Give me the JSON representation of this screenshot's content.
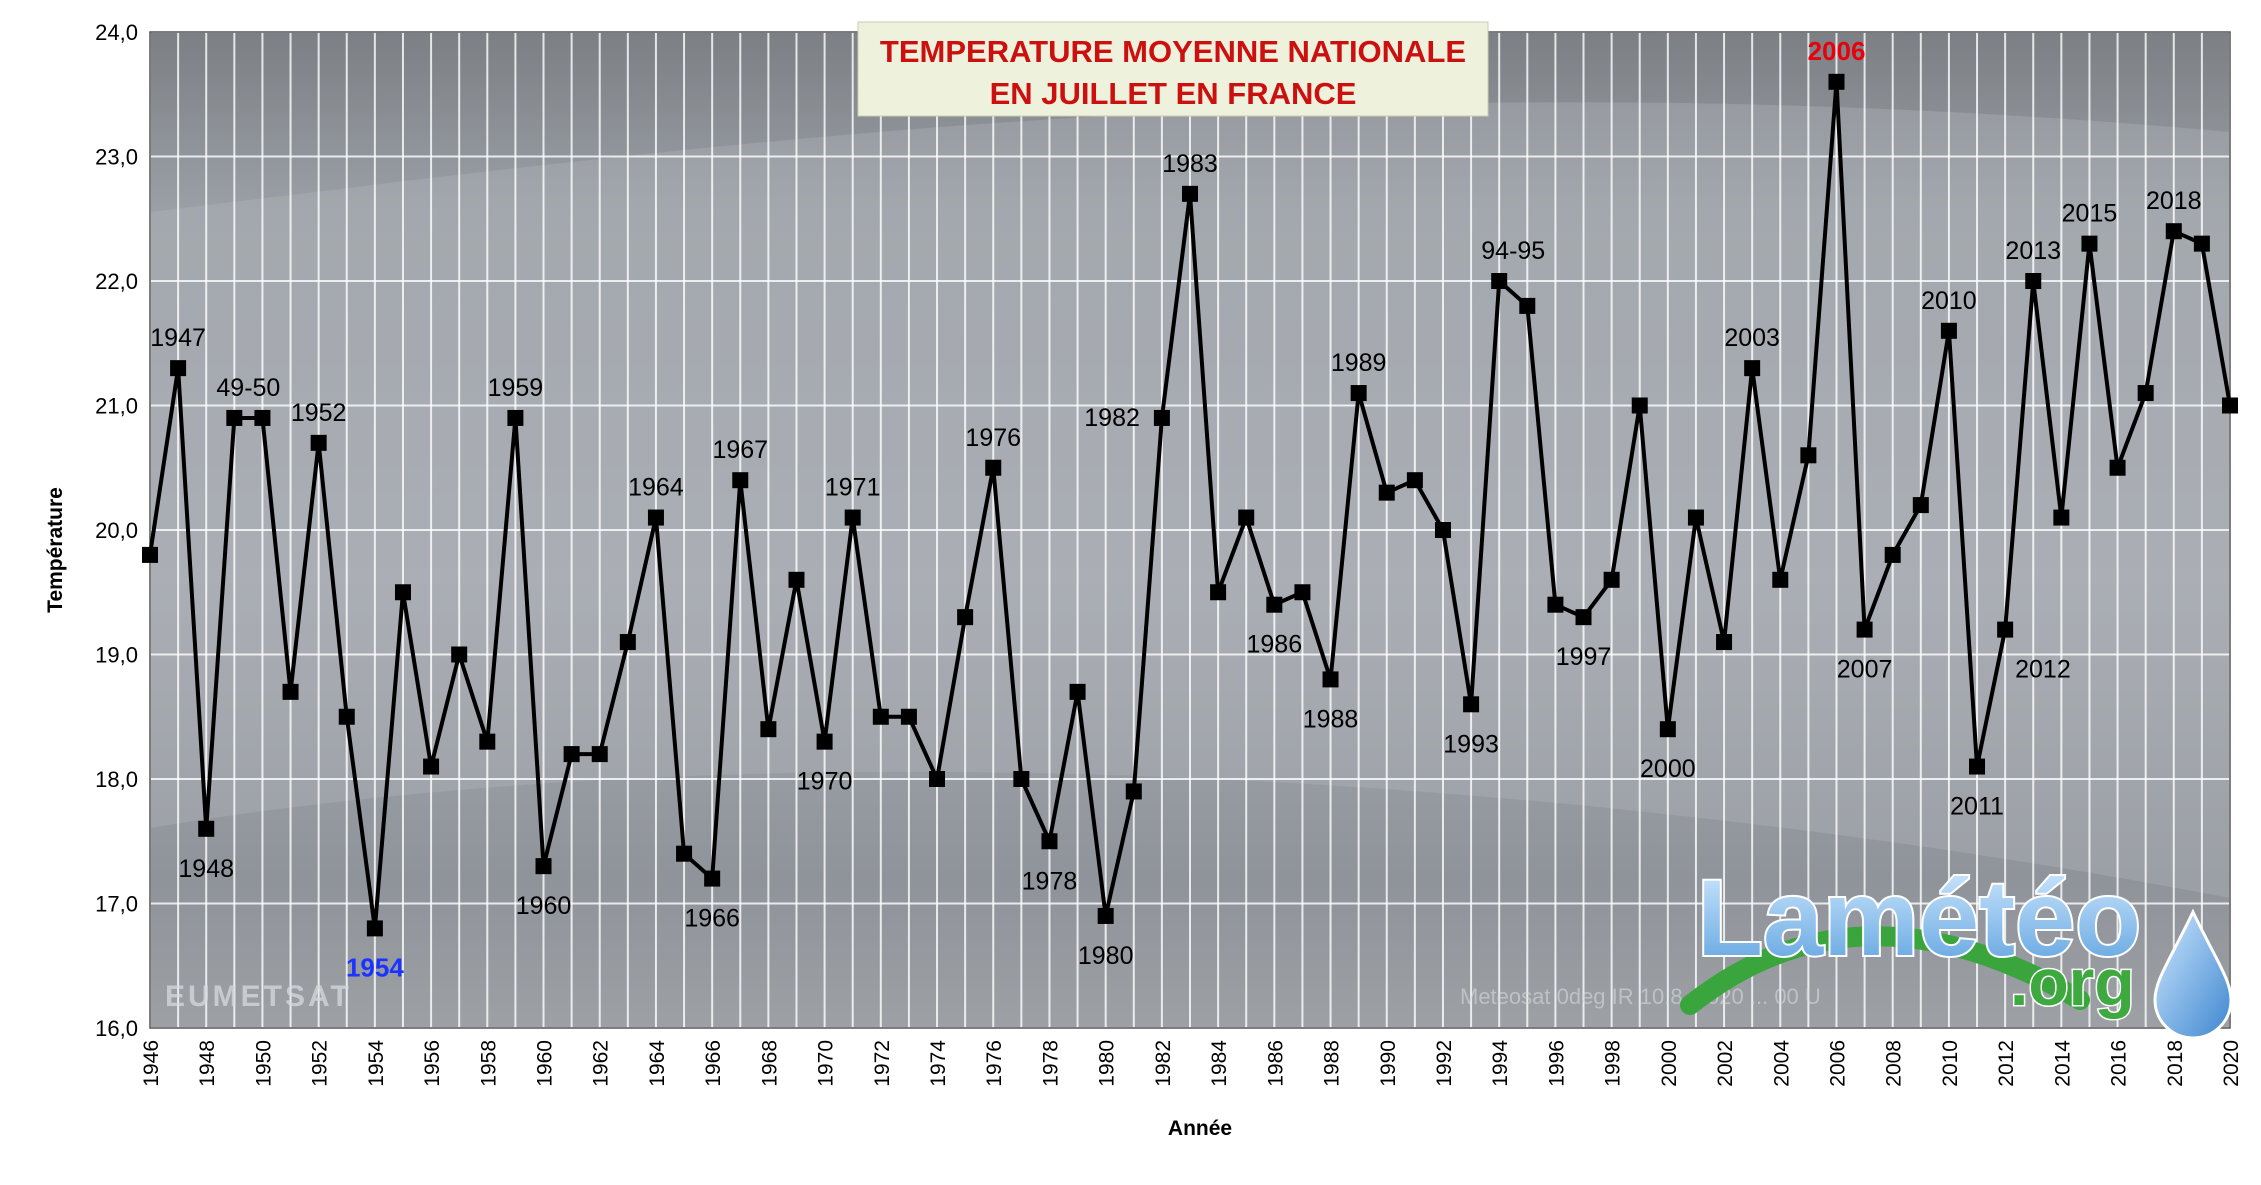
{
  "chart_data": {
    "type": "line",
    "title_line1": "TEMPERATURE MOYENNE NATIONALE",
    "title_line2": "EN JUILLET EN FRANCE",
    "xlabel": "Année",
    "ylabel": "Température",
    "xlim": [
      1946,
      2020
    ],
    "ylim": [
      16.0,
      24.0
    ],
    "y_ticks": [
      "16,0",
      "17,0",
      "18,0",
      "19,0",
      "20,0",
      "21,0",
      "22,0",
      "23,0",
      "24,0"
    ],
    "x_ticks": [
      "1946",
      "1948",
      "1950",
      "1952",
      "1954",
      "1956",
      "1958",
      "1960",
      "1962",
      "1964",
      "1966",
      "1968",
      "1970",
      "1972",
      "1974",
      "1976",
      "1978",
      "1980",
      "1982",
      "1984",
      "1986",
      "1988",
      "1990",
      "1992",
      "1994",
      "1996",
      "1998",
      "2000",
      "2002",
      "2004",
      "2006",
      "2008",
      "2010",
      "2012",
      "2014",
      "2016",
      "2018",
      "2020"
    ],
    "grid": true,
    "series": [
      {
        "color": "#000000",
        "x": [
          1946,
          1947,
          1948,
          1949,
          1950,
          1951,
          1952,
          1953,
          1954,
          1955,
          1956,
          1957,
          1958,
          1959,
          1960,
          1961,
          1962,
          1963,
          1964,
          1965,
          1966,
          1967,
          1968,
          1969,
          1970,
          1971,
          1972,
          1973,
          1974,
          1975,
          1976,
          1977,
          1978,
          1979,
          1980,
          1981,
          1982,
          1983,
          1984,
          1985,
          1986,
          1987,
          1988,
          1989,
          1990,
          1991,
          1992,
          1993,
          1994,
          1995,
          1996,
          1997,
          1998,
          1999,
          2000,
          2001,
          2002,
          2003,
          2004,
          2005,
          2006,
          2007,
          2008,
          2009,
          2010,
          2011,
          2012,
          2013,
          2014,
          2015,
          2016,
          2017,
          2018,
          2019,
          2020
        ],
        "values": [
          19.8,
          21.3,
          17.6,
          20.9,
          20.9,
          18.7,
          20.7,
          18.5,
          16.8,
          19.5,
          18.1,
          19.0,
          18.3,
          20.9,
          17.3,
          18.2,
          18.2,
          19.1,
          20.1,
          17.4,
          17.2,
          20.4,
          18.4,
          19.6,
          18.3,
          20.1,
          18.5,
          18.5,
          18.0,
          19.3,
          20.5,
          18.0,
          17.5,
          18.7,
          16.9,
          17.9,
          20.9,
          22.7,
          19.5,
          20.1,
          19.4,
          19.5,
          18.8,
          21.1,
          20.3,
          20.4,
          20.0,
          18.6,
          22.0,
          21.8,
          19.4,
          19.3,
          19.6,
          21.0,
          18.4,
          20.1,
          19.1,
          21.3,
          19.6,
          20.6,
          23.6,
          19.2,
          19.8,
          20.2,
          21.6,
          18.1,
          19.2,
          22.0,
          20.1,
          22.3,
          20.5,
          21.1,
          22.4,
          22.3,
          21.0
        ]
      }
    ],
    "annotations": [
      {
        "text": "1947",
        "x": 1947,
        "pos": "above",
        "color": "#000000"
      },
      {
        "text": "1948",
        "x": 1948,
        "pos": "below",
        "color": "#000000"
      },
      {
        "text": "49-50",
        "x": 1949.5,
        "pos": "above",
        "color": "#000000"
      },
      {
        "text": "1952",
        "x": 1952,
        "pos": "above",
        "color": "#000000"
      },
      {
        "text": "1954",
        "x": 1954,
        "pos": "below",
        "color": "#1a33ff",
        "bold": true
      },
      {
        "text": "1959",
        "x": 1959,
        "pos": "above",
        "color": "#000000"
      },
      {
        "text": "1960",
        "x": 1960,
        "pos": "below",
        "color": "#000000"
      },
      {
        "text": "1964",
        "x": 1964,
        "pos": "above",
        "color": "#000000"
      },
      {
        "text": "1966",
        "x": 1966,
        "pos": "below",
        "color": "#000000"
      },
      {
        "text": "1967",
        "x": 1967,
        "pos": "above",
        "color": "#000000"
      },
      {
        "text": "1970",
        "x": 1970,
        "pos": "below",
        "color": "#000000"
      },
      {
        "text": "1971",
        "x": 1971,
        "pos": "above",
        "color": "#000000"
      },
      {
        "text": "1976",
        "x": 1976,
        "pos": "above",
        "color": "#000000"
      },
      {
        "text": "1978",
        "x": 1978,
        "pos": "below",
        "color": "#000000"
      },
      {
        "text": "1980",
        "x": 1980,
        "pos": "below",
        "color": "#000000"
      },
      {
        "text": "1982",
        "x": 1982,
        "pos": "left",
        "color": "#000000"
      },
      {
        "text": "1983",
        "x": 1983,
        "pos": "above",
        "color": "#000000"
      },
      {
        "text": "1986",
        "x": 1986,
        "pos": "below",
        "color": "#000000"
      },
      {
        "text": "1988",
        "x": 1988,
        "pos": "below",
        "color": "#000000"
      },
      {
        "text": "1989",
        "x": 1989,
        "pos": "above",
        "color": "#000000"
      },
      {
        "text": "1993",
        "x": 1993,
        "pos": "below",
        "color": "#000000"
      },
      {
        "text": "94-95",
        "x": 1994.5,
        "pos": "above",
        "color": "#000000"
      },
      {
        "text": "1997",
        "x": 1997,
        "pos": "below",
        "color": "#000000"
      },
      {
        "text": "2000",
        "x": 2000,
        "pos": "below",
        "color": "#000000"
      },
      {
        "text": "2003",
        "x": 2003,
        "pos": "above",
        "color": "#000000"
      },
      {
        "text": "2006",
        "x": 2006,
        "pos": "above",
        "color": "#e8000b",
        "bold": true
      },
      {
        "text": "2007",
        "x": 2007,
        "pos": "below",
        "color": "#000000"
      },
      {
        "text": "2010",
        "x": 2010,
        "pos": "above",
        "color": "#000000"
      },
      {
        "text": "2011",
        "x": 2011,
        "pos": "below",
        "color": "#000000"
      },
      {
        "text": "2012",
        "x": 2012,
        "pos": "below-right",
        "color": "#000000"
      },
      {
        "text": "2013",
        "x": 2013,
        "pos": "above",
        "color": "#000000"
      },
      {
        "text": "2015",
        "x": 2015,
        "pos": "above",
        "color": "#000000"
      },
      {
        "text": "2018",
        "x": 2018,
        "pos": "above",
        "color": "#000000"
      }
    ]
  },
  "watermark": {
    "left_text": "EUMETSAT",
    "right_text": "Meteosat 0deg IR 10.8, 2020 ... 00 U"
  },
  "logo": {
    "main_text": "Lamétéo",
    "sub_text": ".org",
    "icon": "water-drop-icon"
  },
  "colors": {
    "title_text": "#cc1010",
    "title_box": "#eef2dc",
    "line": "#000000",
    "highlight_max": "#e8000b",
    "highlight_min": "#1a33ff",
    "plot_bg": "#8a8e93",
    "grid": "#ffffff"
  }
}
